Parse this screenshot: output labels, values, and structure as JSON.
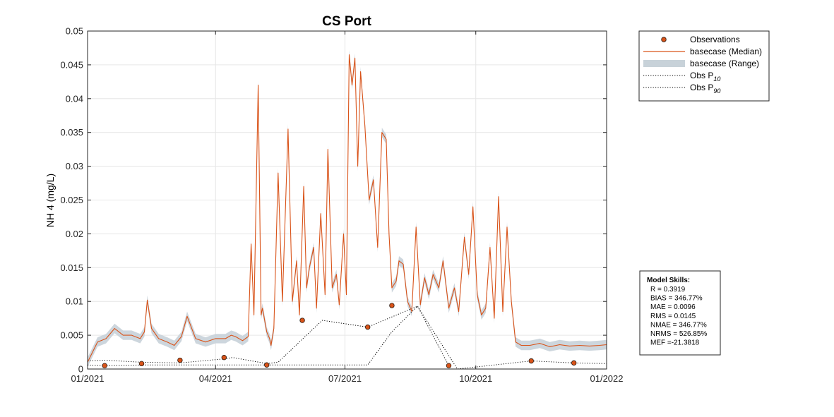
{
  "chart_data": {
    "type": "line",
    "title": "CS Port",
    "ylabel": "NH 4 (mg/L)",
    "xlabel": "",
    "xlim": [
      "2021-01-01",
      "2022-01-01"
    ],
    "ylim": [
      0,
      0.05
    ],
    "grid": true,
    "legend_position": "outside-top-right",
    "x_tick_labels": [
      "01/2021",
      "04/2021",
      "07/2021",
      "10/2021",
      "01/2022"
    ],
    "x_tick_dates": [
      "2021-01-01",
      "2021-04-01",
      "2021-07-01",
      "2021-10-01",
      "2022-01-01"
    ],
    "y_tick_labels": [
      "0",
      "0.005",
      "0.01",
      "0.015",
      "0.02",
      "0.025",
      "0.03",
      "0.035",
      "0.04",
      "0.045",
      "0.05"
    ],
    "y_tick_values": [
      0,
      0.005,
      0.01,
      0.015,
      0.02,
      0.025,
      0.03,
      0.035,
      0.04,
      0.045,
      0.05
    ],
    "series": [
      {
        "name": "basecase (Median)",
        "kind": "line",
        "color": "#d95319",
        "x": [
          "2021-01-01",
          "2021-01-08",
          "2021-01-14",
          "2021-01-20",
          "2021-01-26",
          "2021-02-01",
          "2021-02-07",
          "2021-02-10",
          "2021-02-12",
          "2021-02-15",
          "2021-02-20",
          "2021-02-26",
          "2021-03-03",
          "2021-03-08",
          "2021-03-12",
          "2021-03-18",
          "2021-03-25",
          "2021-04-01",
          "2021-04-08",
          "2021-04-12",
          "2021-04-15",
          "2021-04-20",
          "2021-04-24",
          "2021-04-26",
          "2021-04-28",
          "2021-05-01",
          "2021-05-02",
          "2021-05-03",
          "2021-05-04",
          "2021-05-07",
          "2021-05-09",
          "2021-05-10",
          "2021-05-12",
          "2021-05-15",
          "2021-05-18",
          "2021-05-22",
          "2021-05-25",
          "2021-05-28",
          "2021-05-30",
          "2021-06-02",
          "2021-06-04",
          "2021-06-06",
          "2021-06-09",
          "2021-06-11",
          "2021-06-14",
          "2021-06-17",
          "2021-06-19",
          "2021-06-22",
          "2021-06-25",
          "2021-06-27",
          "2021-06-30",
          "2021-07-02",
          "2021-07-04",
          "2021-07-06",
          "2021-07-08",
          "2021-07-10",
          "2021-07-12",
          "2021-07-15",
          "2021-07-18",
          "2021-07-21",
          "2021-07-24",
          "2021-07-27",
          "2021-07-30",
          "2021-08-01",
          "2021-08-03",
          "2021-08-06",
          "2021-08-08",
          "2021-08-11",
          "2021-08-14",
          "2021-08-17",
          "2021-08-20",
          "2021-08-23",
          "2021-08-26",
          "2021-08-29",
          "2021-09-01",
          "2021-09-05",
          "2021-09-08",
          "2021-09-12",
          "2021-09-16",
          "2021-09-19",
          "2021-09-23",
          "2021-09-26",
          "2021-09-29",
          "2021-10-02",
          "2021-10-05",
          "2021-10-08",
          "2021-10-11",
          "2021-10-14",
          "2021-10-17",
          "2021-10-20",
          "2021-10-23",
          "2021-10-26",
          "2021-10-29",
          "2021-11-02",
          "2021-11-08",
          "2021-11-15",
          "2021-11-22",
          "2021-11-29",
          "2021-12-06",
          "2021-12-13",
          "2021-12-20",
          "2021-12-27",
          "2022-01-01"
        ],
        "y": [
          0.001,
          0.004,
          0.0045,
          0.006,
          0.005,
          0.005,
          0.0045,
          0.0055,
          0.0102,
          0.006,
          0.0045,
          0.004,
          0.0035,
          0.0048,
          0.0078,
          0.0045,
          0.004,
          0.0045,
          0.0045,
          0.005,
          0.0048,
          0.0042,
          0.0048,
          0.0185,
          0.008,
          0.042,
          0.025,
          0.008,
          0.009,
          0.0055,
          0.0045,
          0.0035,
          0.006,
          0.029,
          0.01,
          0.0355,
          0.01,
          0.016,
          0.008,
          0.027,
          0.012,
          0.015,
          0.018,
          0.009,
          0.023,
          0.011,
          0.0325,
          0.012,
          0.014,
          0.0095,
          0.02,
          0.011,
          0.0465,
          0.042,
          0.046,
          0.03,
          0.044,
          0.036,
          0.025,
          0.028,
          0.018,
          0.035,
          0.034,
          0.02,
          0.012,
          0.013,
          0.016,
          0.0155,
          0.01,
          0.0085,
          0.021,
          0.0095,
          0.0135,
          0.011,
          0.014,
          0.012,
          0.016,
          0.009,
          0.012,
          0.0085,
          0.0195,
          0.014,
          0.024,
          0.011,
          0.008,
          0.009,
          0.018,
          0.0075,
          0.0255,
          0.0085,
          0.021,
          0.01,
          0.004,
          0.0035,
          0.0035,
          0.0038,
          0.0033,
          0.0036,
          0.0034,
          0.0035,
          0.0034,
          0.0035,
          0.0036
        ]
      },
      {
        "name": "Observations",
        "kind": "scatter",
        "color": "#d95319",
        "x": [
          "2021-01-13",
          "2021-02-08",
          "2021-03-07",
          "2021-04-07",
          "2021-05-07",
          "2021-06-01",
          "2021-07-17",
          "2021-08-03",
          "2021-09-12",
          "2021-11-09",
          "2021-12-09"
        ],
        "y": [
          0.0005,
          0.0008,
          0.0013,
          0.0017,
          0.0006,
          0.0072,
          0.0062,
          0.0094,
          0.0005,
          0.0012,
          0.0009
        ]
      },
      {
        "name": "Obs P10",
        "kind": "dotted",
        "color": "#000000",
        "x": [
          "2021-01-01",
          "2021-01-13",
          "2021-02-08",
          "2021-03-07",
          "2021-04-07",
          "2021-05-07",
          "2021-06-01",
          "2021-07-17",
          "2021-08-03",
          "2021-08-21",
          "2021-09-12"
        ],
        "y": [
          0.0006,
          0.0005,
          0.0006,
          0.0006,
          0.0006,
          0.0006,
          0.0006,
          0.0006,
          0.0055,
          0.0093,
          0.0005
        ]
      },
      {
        "name": "Obs P90",
        "kind": "dotted",
        "color": "#000000",
        "x": [
          "2021-01-01",
          "2021-01-13",
          "2021-02-08",
          "2021-03-07",
          "2021-04-07",
          "2021-04-13",
          "2021-05-07",
          "2021-05-15",
          "2021-06-15",
          "2021-07-17",
          "2021-08-21",
          "2021-09-18",
          "2021-11-09",
          "2021-12-09",
          "2022-01-01"
        ],
        "y": [
          0.0012,
          0.0013,
          0.001,
          0.0009,
          0.0015,
          0.0017,
          0.0008,
          0.001,
          0.0072,
          0.0062,
          0.0093,
          0.0,
          0.0012,
          0.0009,
          0.0008
        ]
      }
    ],
    "range_band": {
      "name": "basecase (Range)",
      "color": "#c8d2d9",
      "half_width": 0.0007
    },
    "legend": {
      "items": [
        {
          "label": "Observations",
          "symbol": "marker"
        },
        {
          "label": "basecase (Median)",
          "symbol": "line"
        },
        {
          "label": "basecase (Range)",
          "symbol": "patch"
        },
        {
          "label": "Obs P",
          "sub": "10",
          "symbol": "dotted"
        },
        {
          "label": "Obs P",
          "sub": "90",
          "symbol": "dotted"
        }
      ]
    },
    "model_skills": {
      "title": "Model Skills:",
      "lines": [
        "R    = 0.3919",
        "BIAS = 346.77%",
        "MAE  = 0.0096",
        "RMS  = 0.0145",
        "NMAE = 346.77%",
        "NRMS = 526.85%",
        "MEF  =-21.3818"
      ]
    }
  }
}
